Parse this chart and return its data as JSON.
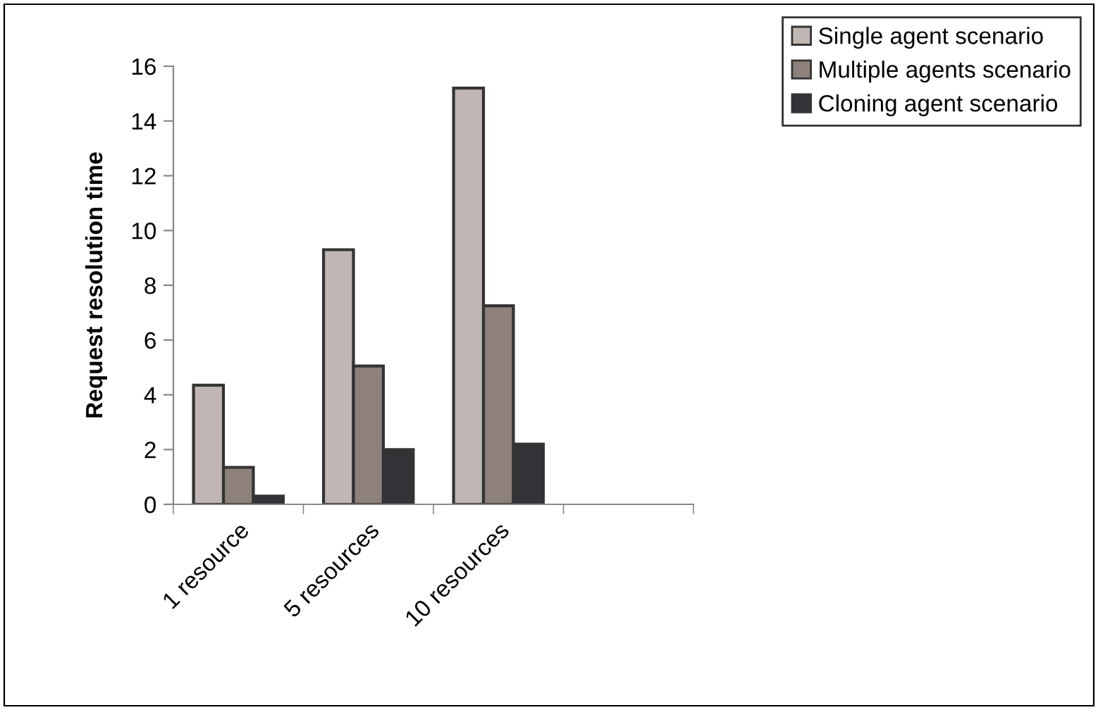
{
  "chart_data": {
    "type": "bar",
    "ylabel": "Request resolution time",
    "categories": [
      "1 resource",
      "5 resources",
      "10 resources",
      null
    ],
    "series": [
      {
        "name": "Single agent scenario",
        "color": "#c0b7b4",
        "values": [
          4.35,
          9.3,
          15.2,
          null
        ]
      },
      {
        "name": "Multiple agents scenario",
        "color": "#8e817b",
        "values": [
          1.35,
          5.05,
          7.25,
          null
        ]
      },
      {
        "name": "Cloning agent scenario",
        "color": "#333236",
        "values": [
          0.3,
          2.0,
          2.2,
          null
        ]
      }
    ],
    "ylim": [
      0,
      16
    ],
    "yticks": [
      0,
      2,
      4,
      6,
      8,
      10,
      12,
      14,
      16
    ],
    "grid": false,
    "legend": "top right"
  }
}
